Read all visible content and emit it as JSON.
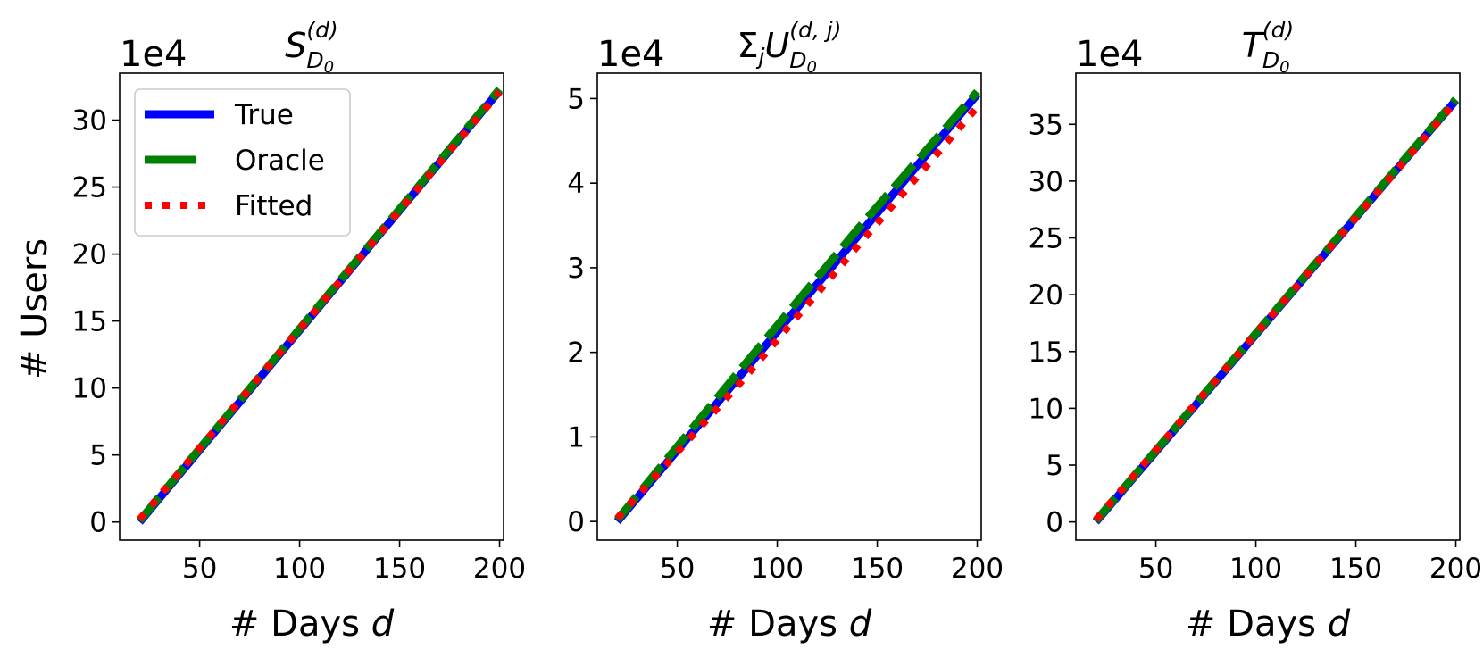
{
  "figure": {
    "ylabel": "# Users"
  },
  "legend": {
    "placement": "top-left",
    "entries": [
      {
        "label": "True",
        "color": "#0000ff",
        "style": "solid"
      },
      {
        "label": "Oracle",
        "color": "#008000",
        "style": "dashed"
      },
      {
        "label": "Fitted",
        "color": "#ff0000",
        "style": "dotted"
      }
    ]
  },
  "chart_data": [
    {
      "type": "line",
      "title": {
        "main": "S",
        "sup": "(d)",
        "sub": "D",
        "subsub": "0"
      },
      "xlabel": {
        "text": "# Days ",
        "var": "d"
      },
      "ylabel": "# Users",
      "scale_label": "1e4",
      "xlim": [
        10,
        202
      ],
      "ylim": [
        -1.35,
        33.5
      ],
      "xticks": [
        50,
        100,
        150,
        200
      ],
      "yticks": [
        0,
        5,
        10,
        15,
        20,
        25,
        30
      ],
      "grid": false,
      "series": [
        {
          "name": "True",
          "x": [
            20,
            200
          ],
          "y": [
            0,
            32.2
          ]
        },
        {
          "name": "Oracle",
          "x": [
            20,
            200
          ],
          "y": [
            0.1,
            32.3
          ]
        },
        {
          "name": "Fitted",
          "x": [
            20,
            200
          ],
          "y": [
            0.2,
            32.1
          ]
        }
      ]
    },
    {
      "type": "line",
      "title": {
        "prefix": "Σ",
        "prefix_sub": "j",
        "main": "U",
        "sup": "(d, j)",
        "sub": "D",
        "subsub": "0"
      },
      "xlabel": {
        "text": "# Days ",
        "var": "d"
      },
      "scale_label": "1e4",
      "xlim": [
        10,
        202
      ],
      "ylim": [
        -0.22,
        5.3
      ],
      "xticks": [
        50,
        100,
        150,
        200
      ],
      "yticks": [
        0,
        1,
        2,
        3,
        4,
        5
      ],
      "grid": false,
      "series": [
        {
          "name": "True",
          "x": [
            20,
            200
          ],
          "y": [
            0,
            5.05
          ]
        },
        {
          "name": "Oracle",
          "x": [
            20,
            80,
            140,
            200
          ],
          "y": [
            0.02,
            1.75,
            3.45,
            5.08
          ]
        },
        {
          "name": "Fitted",
          "x": [
            20,
            80,
            140,
            200
          ],
          "y": [
            0.04,
            1.6,
            3.25,
            4.9
          ]
        }
      ]
    },
    {
      "type": "line",
      "title": {
        "main": "T",
        "sup": "(d)",
        "sub": "D",
        "subsub": "0"
      },
      "xlabel": {
        "text": "# Days ",
        "var": "d"
      },
      "scale_label": "1e4",
      "xlim": [
        10,
        202
      ],
      "ylim": [
        -1.6,
        39.5
      ],
      "xticks": [
        50,
        100,
        150,
        200
      ],
      "yticks": [
        0,
        5,
        10,
        15,
        20,
        25,
        30,
        35
      ],
      "grid": false,
      "series": [
        {
          "name": "True",
          "x": [
            20,
            200
          ],
          "y": [
            0,
            37.1
          ]
        },
        {
          "name": "Oracle",
          "x": [
            20,
            200
          ],
          "y": [
            0.1,
            37.2
          ]
        },
        {
          "name": "Fitted",
          "x": [
            20,
            200
          ],
          "y": [
            0.2,
            37.0
          ]
        }
      ]
    }
  ]
}
